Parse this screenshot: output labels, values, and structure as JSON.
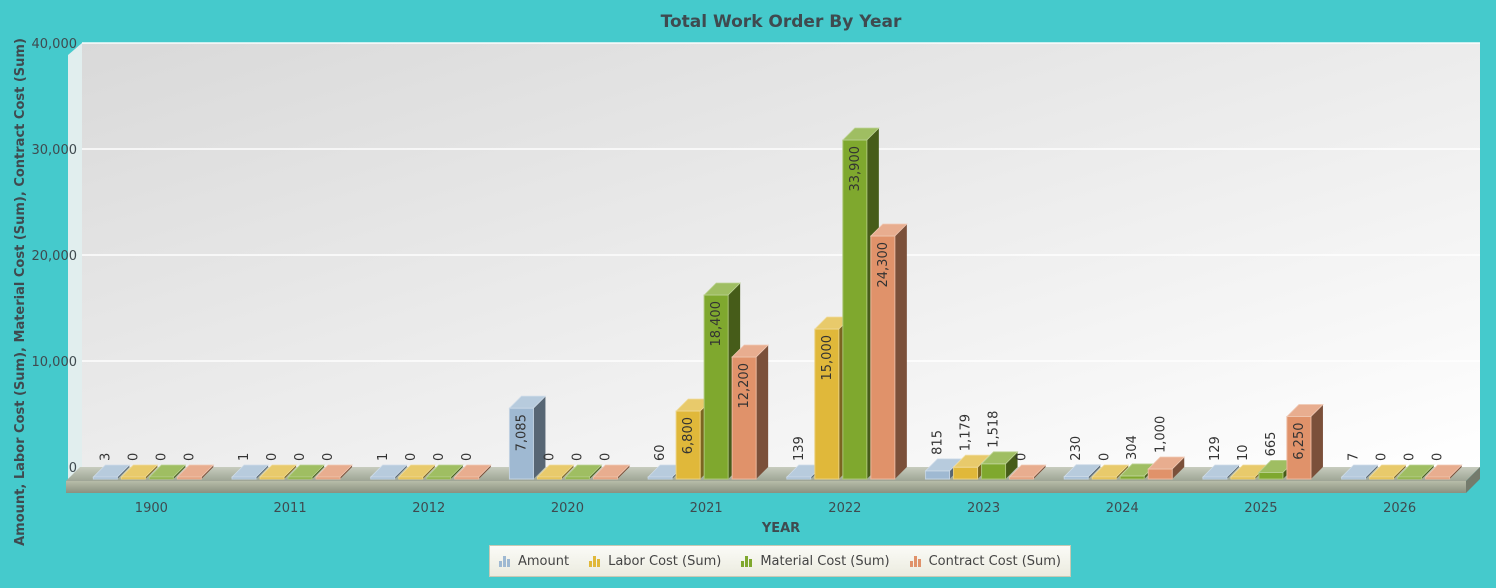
{
  "chart_data": {
    "type": "bar",
    "title": "Total Work Order By Year",
    "xlabel": "YEAR",
    "ylabel": "Amount, Labor Cost (Sum), Material Cost (Sum), Contract Cost (Sum)",
    "ylim": [
      0,
      40000
    ],
    "yticks": [
      0,
      10000,
      20000,
      30000,
      40000
    ],
    "ytick_labels": [
      "0",
      "10,000",
      "20,000",
      "30,000",
      "40,000"
    ],
    "categories": [
      "1900",
      "2011",
      "2012",
      "2020",
      "2021",
      "2022",
      "2023",
      "2024",
      "2025",
      "2026"
    ],
    "series": [
      {
        "name": "Amount",
        "color": "#9fb9d2",
        "values": [
          3,
          1,
          1,
          7085,
          60,
          139,
          815,
          230,
          129,
          7
        ],
        "labels": [
          "3",
          "1",
          "1",
          "7,085",
          "60",
          "139",
          "815",
          "230",
          "129",
          "7"
        ]
      },
      {
        "name": "Labor Cost (Sum)",
        "color": "#e0b83a",
        "values": [
          0,
          0,
          0,
          0,
          6800,
          15000,
          1179,
          0,
          10,
          0
        ],
        "labels": [
          "0",
          "0",
          "0",
          "0",
          "6,800",
          "15,000",
          "1,179",
          "0",
          "10",
          "0"
        ]
      },
      {
        "name": "Material Cost (Sum)",
        "color": "#7fa82e",
        "values": [
          0,
          0,
          0,
          0,
          18400,
          33900,
          1518,
          304,
          665,
          0
        ],
        "labels": [
          "0",
          "0",
          "0",
          "0",
          "18,400",
          "33,900",
          "1,518",
          "304",
          "665",
          "0"
        ]
      },
      {
        "name": "Contract Cost (Sum)",
        "color": "#e0926a",
        "values": [
          0,
          0,
          0,
          0,
          12200,
          24300,
          0,
          1000,
          6250,
          0
        ],
        "labels": [
          "0",
          "0",
          "0",
          "0",
          "12,200",
          "24,300",
          "0",
          "1,000",
          "6,250",
          "0"
        ]
      }
    ],
    "grid": true,
    "legend_position": "bottom",
    "style": "3d-columns"
  }
}
